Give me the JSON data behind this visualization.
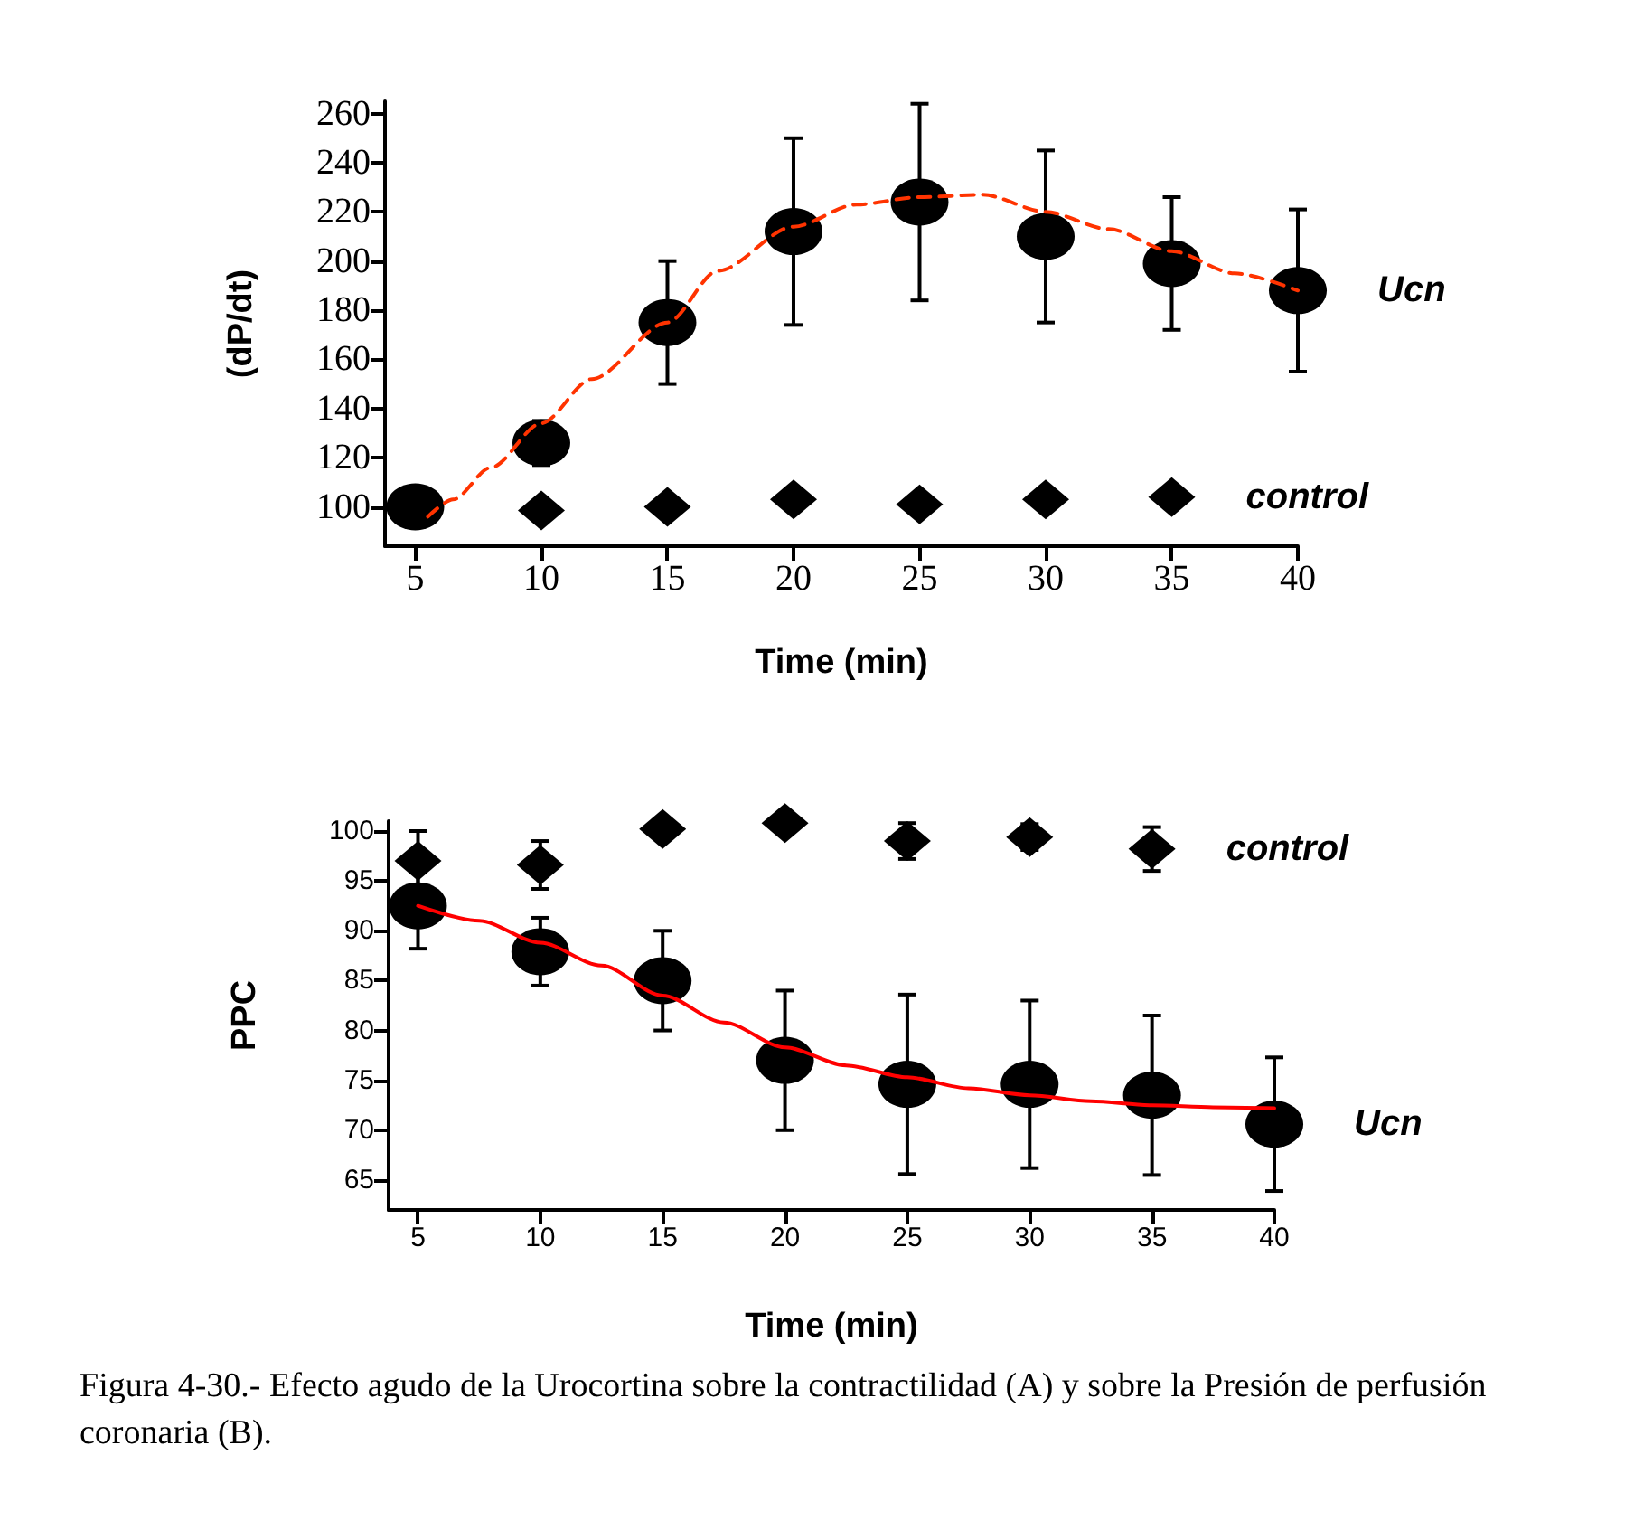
{
  "chart_data": [
    {
      "type": "scatter",
      "xlabel": "Time (min)",
      "ylabel": "(dP/dt)",
      "xlim": [
        3.8,
        40
      ],
      "ylim": [
        84,
        265
      ],
      "xticks": [
        5,
        10,
        15,
        20,
        25,
        30,
        35,
        40
      ],
      "yticks": [
        100,
        120,
        140,
        160,
        180,
        200,
        220,
        240,
        260
      ],
      "grid": false,
      "x": [
        5,
        10,
        15,
        20,
        25,
        30,
        35,
        40
      ],
      "series": [
        {
          "type": "line",
          "color": "#ff3300",
          "line_style": "dashed",
          "marker": "none",
          "x": [
            5.5,
            6.5,
            8,
            10,
            12,
            15,
            17,
            20,
            22.5,
            25,
            27.5,
            30,
            32.5,
            35,
            37.5,
            40
          ],
          "values": [
            96,
            103,
            116,
            134,
            152,
            175,
            196,
            214,
            223,
            226,
            227,
            220,
            213,
            204,
            195,
            188
          ]
        },
        {
          "name": "Ucn",
          "color": "#000000",
          "marker": "circle",
          "values": [
            100,
            126,
            175,
            212,
            224,
            210,
            199,
            188
          ],
          "errors": [
            null,
            9,
            25,
            38,
            40,
            35,
            27,
            33
          ]
        },
        {
          "name": "control",
          "color": "#000000",
          "marker": "diamond",
          "x": [
            10,
            15,
            20,
            25,
            30,
            35
          ],
          "values": [
            98.5,
            100,
            103,
            101,
            103,
            104
          ]
        }
      ]
    },
    {
      "type": "scatter",
      "xlabel": "Time (min)",
      "ylabel": "PPC",
      "xlim": [
        3.8,
        40
      ],
      "ylim": [
        62,
        101
      ],
      "xticks": [
        5,
        10,
        15,
        20,
        25,
        30,
        35,
        40
      ],
      "yticks": [
        65,
        70,
        75,
        80,
        85,
        90,
        95,
        100
      ],
      "grid": false,
      "x": [
        5,
        10,
        15,
        20,
        25,
        30,
        35,
        40
      ],
      "annotations": [
        "Figura 4-30.- Efecto agudo de la Urocortina sobre la contractilidad (A) y sobre la Presión de perfusión coronaria (B)."
      ],
      "series": [
        {
          "type": "line",
          "color": "#ff0000",
          "line_style": "solid",
          "marker": "none",
          "x": [
            5,
            7.5,
            10,
            12.5,
            15,
            17.5,
            20,
            22.5,
            25,
            27.5,
            30,
            32.5,
            35,
            37.5,
            40
          ],
          "values": [
            92.5,
            91,
            88.8,
            86.5,
            83.5,
            80.8,
            78.3,
            76.5,
            75.3,
            74.2,
            73.5,
            72.9,
            72.5,
            72.3,
            72.2
          ]
        },
        {
          "name": "control",
          "color": "#000000",
          "marker": "diamond",
          "x": [
            5,
            10,
            15,
            20,
            25,
            30,
            35
          ],
          "values": [
            97,
            96.6,
            100.2,
            100.8,
            99,
            99.4,
            98.2
          ],
          "errors": [
            3,
            2.4,
            null,
            null,
            1.8,
            1.3,
            2.2
          ]
        },
        {
          "name": "Ucn",
          "color": "#000000",
          "marker": "circle",
          "values": [
            92.5,
            87.9,
            85,
            77,
            74.6,
            74.6,
            73.5,
            70.6
          ],
          "errors": [
            4.3,
            3.4,
            5,
            7,
            9,
            8.4,
            8,
            6.7
          ]
        }
      ]
    }
  ]
}
